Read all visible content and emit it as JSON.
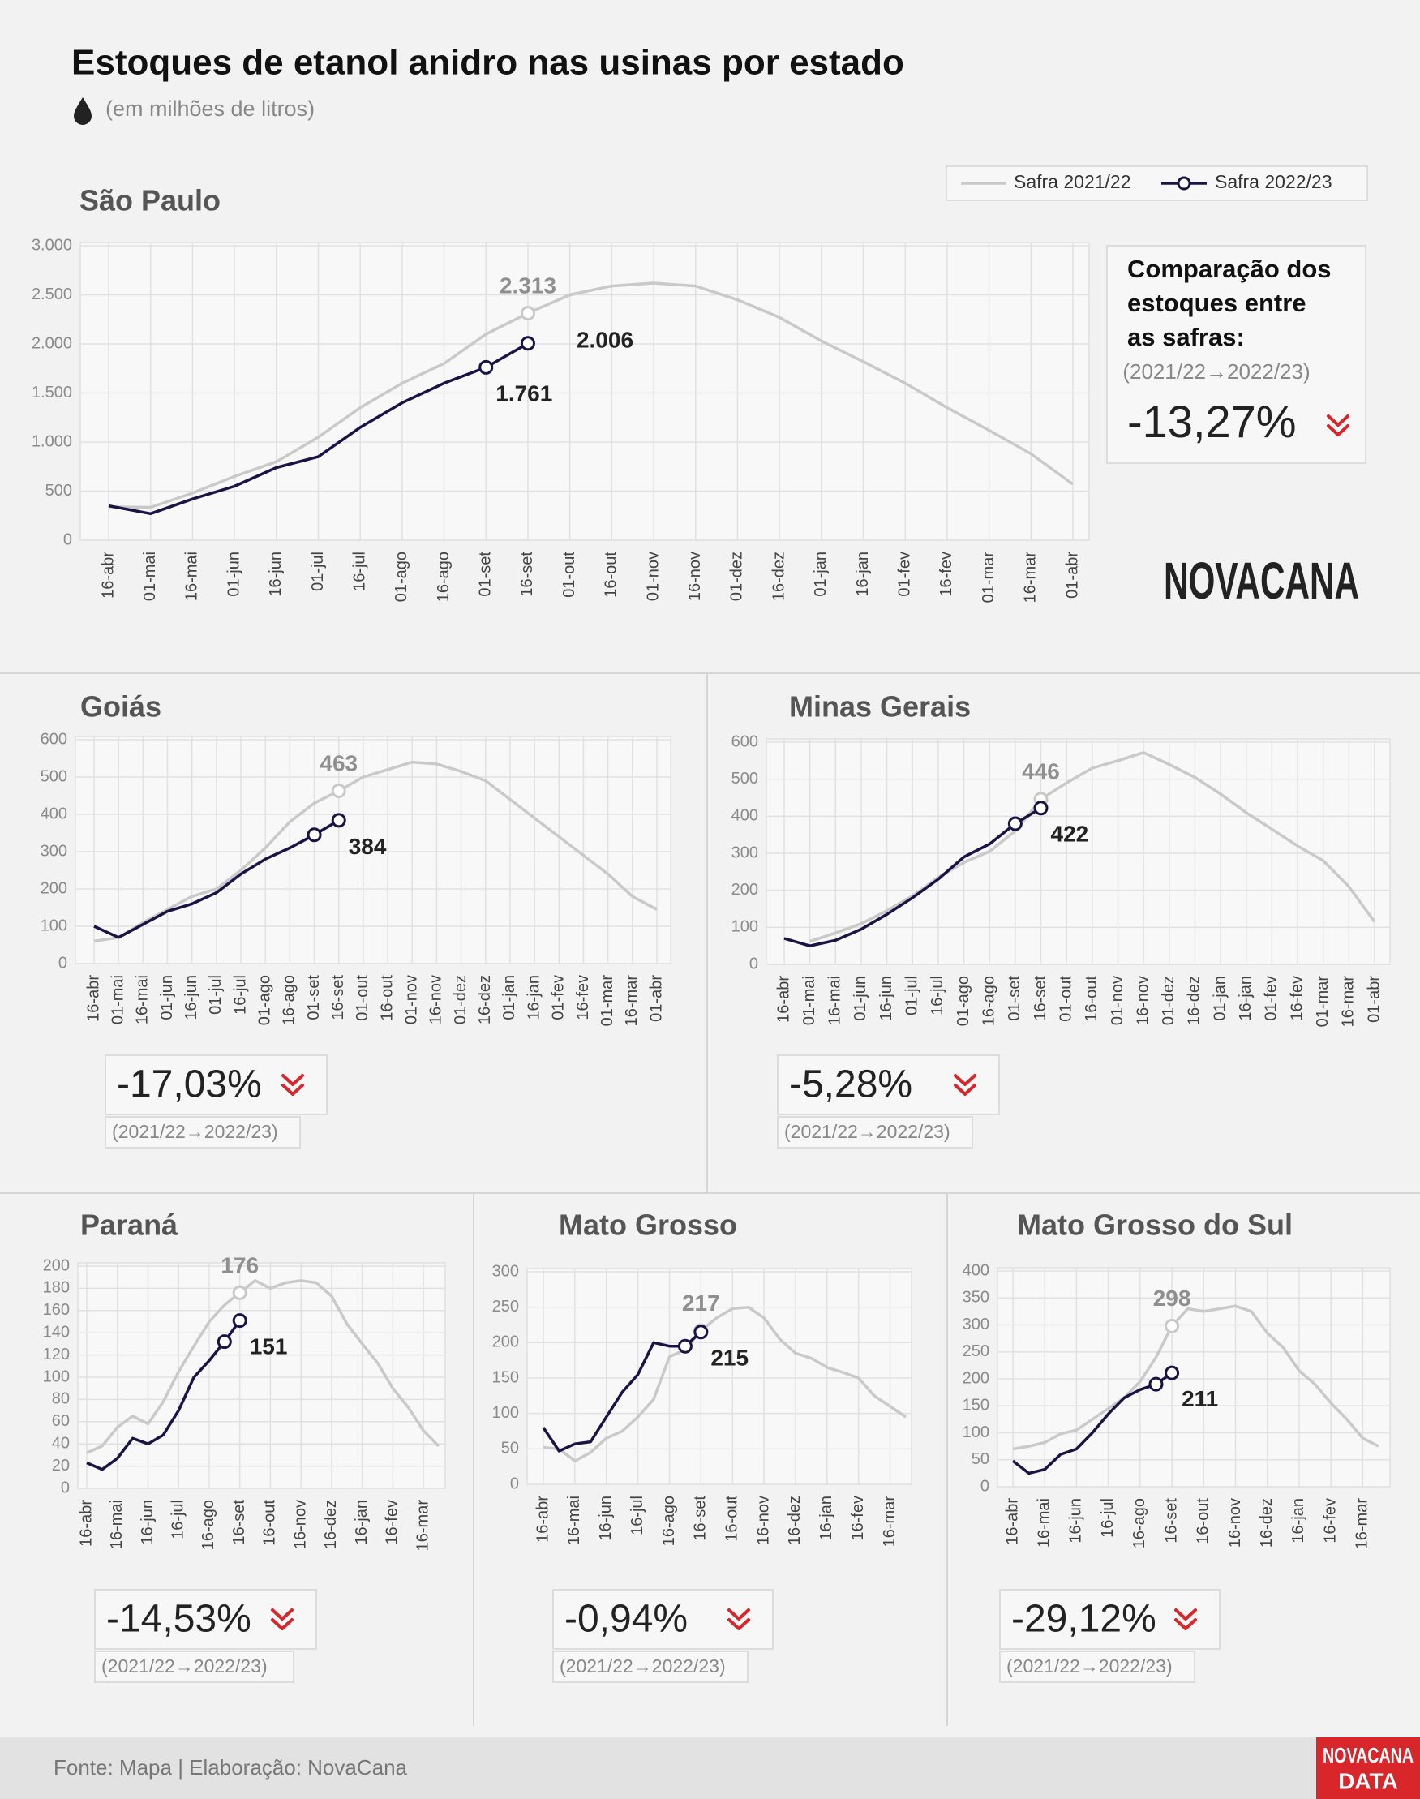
{
  "title": "Estoques de etanol anidro nas usinas por estado",
  "subtitle": "(em milhões de litros)",
  "logo": "NOVACANA",
  "source": "Fonte: Mapa | Elaboração: NovaCana",
  "footer_logo": [
    "NOVACANA",
    "DATA"
  ],
  "chart_data": [
    {
      "type": "line",
      "title": "São Paulo",
      "categories": [
        "16-abr",
        "01-mai",
        "16-mai",
        "01-jun",
        "16-jun",
        "01-jul",
        "16-jul",
        "01-ago",
        "16-ago",
        "01-set",
        "16-set",
        "01-out",
        "16-out",
        "01-nov",
        "16-nov",
        "01-dez",
        "16-dez",
        "01-jan",
        "16-jan",
        "01-fev",
        "16-fev",
        "01-mar",
        "16-mar",
        "01-abr"
      ],
      "series": [
        {
          "name": "Safra 2021/22",
          "color": "#c9c9c9",
          "values": [
            340,
            335,
            480,
            650,
            800,
            1050,
            1350,
            1600,
            1800,
            2100,
            2313,
            2500,
            2590,
            2620,
            2590,
            2450,
            2270,
            2030,
            1820,
            1600,
            1350,
            1120,
            880,
            570
          ],
          "value_labels": [
            null,
            null,
            null,
            null,
            null,
            null,
            null,
            null,
            null,
            null,
            "2.313",
            null,
            null,
            null,
            null,
            null,
            null,
            null,
            null,
            null,
            null,
            null,
            null,
            null
          ]
        },
        {
          "name": "Safra 2022/23",
          "color": "#1a1446",
          "values": [
            350,
            270,
            420,
            550,
            740,
            850,
            1150,
            1400,
            1600,
            1761,
            2006,
            null,
            null,
            null,
            null,
            null,
            null,
            null,
            null,
            null,
            null,
            null,
            null,
            null
          ],
          "value_labels": [
            null,
            null,
            null,
            null,
            null,
            null,
            null,
            null,
            null,
            "1.761",
            "2.006",
            null,
            null,
            null,
            null,
            null,
            null,
            null,
            null,
            null,
            null,
            null,
            null,
            null
          ]
        }
      ],
      "ylim": [
        0,
        3000
      ],
      "yticks": [
        0,
        500,
        {
          "value": 1000,
          "label": "1.000"
        },
        {
          "value": 1500,
          "label": "1.500"
        },
        {
          "value": 2000,
          "label": "2.000"
        },
        {
          "value": 2500,
          "label": "2.500"
        },
        {
          "value": 3000,
          "label": "3.000"
        }
      ],
      "grid": true,
      "comparison": {
        "label": [
          "Comparação dos",
          "estoques entre",
          "as safras:"
        ],
        "period": "(2021/22→2022/23)",
        "change": "-13,27%"
      }
    },
    {
      "type": "line",
      "title": "Goiás",
      "categories": [
        "16-abr",
        "01-mai",
        "16-mai",
        "01-jun",
        "16-jun",
        "01-jul",
        "16-jul",
        "01-ago",
        "16-ago",
        "01-set",
        "16-set",
        "01-out",
        "16-out",
        "01-nov",
        "16-nov",
        "01-dez",
        "16-dez",
        "01-jan",
        "16-jan",
        "01-fev",
        "16-fev",
        "01-mar",
        "16-mar",
        "01-abr"
      ],
      "series": [
        {
          "color": "#c9c9c9",
          "values": [
            60,
            70,
            110,
            145,
            180,
            200,
            250,
            310,
            380,
            430,
            463,
            500,
            520,
            540,
            535,
            515,
            490,
            440,
            390,
            340,
            290,
            240,
            180,
            145
          ],
          "value_labels": [
            null,
            null,
            null,
            null,
            null,
            null,
            null,
            null,
            null,
            null,
            "463",
            null,
            null,
            null,
            null,
            null,
            null,
            null,
            null,
            null,
            null,
            null,
            null,
            null
          ]
        },
        {
          "color": "#1a1446",
          "values": [
            100,
            70,
            105,
            140,
            160,
            190,
            240,
            280,
            310,
            345,
            384,
            null,
            null,
            null,
            null,
            null,
            null,
            null,
            null,
            null,
            null,
            null,
            null,
            null
          ],
          "value_labels": [
            null,
            null,
            null,
            null,
            null,
            null,
            null,
            null,
            null,
            null,
            "384",
            null,
            null,
            null,
            null,
            null,
            null,
            null,
            null,
            null,
            null,
            null,
            null,
            null
          ]
        }
      ],
      "ylim": [
        0,
        600
      ],
      "yticks": [
        0,
        100,
        200,
        300,
        400,
        500,
        600
      ],
      "grid": true,
      "comparison": {
        "period": "(2021/22→2022/23)",
        "change": "-17,03%"
      }
    },
    {
      "type": "line",
      "title": "Minas Gerais",
      "categories": [
        "16-abr",
        "01-mai",
        "16-mai",
        "01-jun",
        "16-jun",
        "01-jul",
        "16-jul",
        "01-ago",
        "16-ago",
        "01-set",
        "16-set",
        "01-out",
        "16-out",
        "01-nov",
        "16-nov",
        "01-dez",
        "16-dez",
        "01-jan",
        "16-jan",
        "01-fev",
        "16-fev",
        "01-mar",
        "16-mar",
        "01-abr"
      ],
      "series": [
        {
          "color": "#c9c9c9",
          "values": [
            null,
            62,
            85,
            110,
            145,
            185,
            235,
            275,
            305,
            360,
            446,
            490,
            530,
            550,
            572,
            540,
            505,
            460,
            410,
            365,
            320,
            280,
            210,
            115
          ],
          "value_labels": [
            null,
            null,
            null,
            null,
            null,
            null,
            null,
            null,
            null,
            null,
            "446",
            null,
            null,
            null,
            null,
            null,
            null,
            null,
            null,
            null,
            null,
            null,
            null,
            null
          ]
        },
        {
          "color": "#1a1446",
          "values": [
            70,
            50,
            65,
            95,
            135,
            180,
            230,
            290,
            325,
            380,
            422,
            null,
            null,
            null,
            null,
            null,
            null,
            null,
            null,
            null,
            null,
            null,
            null,
            null
          ],
          "value_labels": [
            null,
            null,
            null,
            null,
            null,
            null,
            null,
            null,
            null,
            null,
            "422",
            null,
            null,
            null,
            null,
            null,
            null,
            null,
            null,
            null,
            null,
            null,
            null,
            null
          ]
        }
      ],
      "ylim": [
        0,
        600
      ],
      "yticks": [
        0,
        100,
        200,
        300,
        400,
        500,
        600
      ],
      "grid": true,
      "comparison": {
        "period": "(2021/22→2022/23)",
        "change": "-5,28%"
      }
    },
    {
      "type": "line",
      "title": "Paraná",
      "categories": [
        "16-abr",
        null,
        "16-mai",
        null,
        "16-jun",
        null,
        "16-jul",
        null,
        "16-ago",
        null,
        "16-set",
        null,
        "16-out",
        null,
        "16-nov",
        null,
        "16-dez",
        null,
        "16-jan",
        null,
        "16-fev",
        null,
        "16-mar",
        null
      ],
      "series": [
        {
          "color": "#c9c9c9",
          "values": [
            32,
            38,
            55,
            65,
            58,
            78,
            105,
            128,
            150,
            165,
            176,
            187,
            180,
            185,
            187,
            185,
            173,
            148,
            130,
            113,
            90,
            73,
            52,
            38
          ],
          "value_labels": [
            null,
            null,
            null,
            null,
            null,
            null,
            null,
            null,
            null,
            null,
            "176",
            null,
            null,
            null,
            null,
            null,
            null,
            null,
            null,
            null,
            null,
            null,
            null,
            null
          ]
        },
        {
          "color": "#1a1446",
          "values": [
            23,
            17,
            27,
            45,
            40,
            48,
            70,
            100,
            115,
            132,
            151,
            null,
            null,
            null,
            null,
            null,
            null,
            null,
            null,
            null,
            null,
            null,
            null,
            null
          ],
          "value_labels": [
            null,
            null,
            null,
            null,
            null,
            null,
            null,
            null,
            null,
            null,
            "151",
            null,
            null,
            null,
            null,
            null,
            null,
            null,
            null,
            null,
            null,
            null,
            null,
            null
          ]
        }
      ],
      "ylim": [
        0,
        200
      ],
      "yticks": [
        0,
        20,
        40,
        60,
        80,
        100,
        120,
        140,
        160,
        180,
        200
      ],
      "grid": true,
      "comparison": {
        "period": "(2021/22→2022/23)",
        "change": "-14,53%"
      }
    },
    {
      "type": "line",
      "title": "Mato Grosso",
      "categories": [
        "16-abr",
        null,
        "16-mai",
        null,
        "16-jun",
        null,
        "16-jul",
        null,
        "16-ago",
        null,
        "16-set",
        null,
        "16-out",
        null,
        "16-nov",
        null,
        "16-dez",
        null,
        "16-jan",
        null,
        "16-fev",
        null,
        "16-mar",
        null
      ],
      "series": [
        {
          "color": "#c9c9c9",
          "values": [
            52,
            50,
            33,
            45,
            65,
            75,
            95,
            120,
            180,
            190,
            217,
            235,
            248,
            250,
            235,
            205,
            185,
            178,
            165,
            158,
            150,
            125,
            110,
            95
          ],
          "value_labels": [
            null,
            null,
            null,
            null,
            null,
            null,
            null,
            null,
            null,
            null,
            "217",
            null,
            null,
            null,
            null,
            null,
            null,
            null,
            null,
            null,
            null,
            null,
            null,
            null
          ]
        },
        {
          "color": "#1a1446",
          "values": [
            80,
            47,
            57,
            60,
            95,
            130,
            155,
            200,
            195,
            195,
            215,
            null,
            null,
            null,
            null,
            null,
            null,
            null,
            null,
            null,
            null,
            null,
            null,
            null
          ],
          "value_labels": [
            null,
            null,
            null,
            null,
            null,
            null,
            null,
            null,
            null,
            null,
            "215",
            null,
            null,
            null,
            null,
            null,
            null,
            null,
            null,
            null,
            null,
            null,
            null,
            null
          ]
        }
      ],
      "ylim": [
        0,
        300
      ],
      "yticks": [
        0,
        50,
        100,
        150,
        200,
        250,
        300
      ],
      "grid": true,
      "comparison": {
        "period": "(2021/22→2022/23)",
        "change": "-0,94%"
      }
    },
    {
      "type": "line",
      "title": "Mato Grosso do Sul",
      "categories": [
        "16-abr",
        null,
        "16-mai",
        null,
        "16-jun",
        null,
        "16-jul",
        null,
        "16-ago",
        null,
        "16-set",
        null,
        "16-out",
        null,
        "16-nov",
        null,
        "16-dez",
        null,
        "16-jan",
        null,
        "16-fev",
        null,
        "16-mar",
        null
      ],
      "series": [
        {
          "color": "#c9c9c9",
          "values": [
            70,
            75,
            82,
            98,
            105,
            125,
            145,
            165,
            195,
            240,
            298,
            330,
            325,
            330,
            335,
            325,
            285,
            258,
            215,
            190,
            155,
            125,
            90,
            75
          ],
          "value_labels": [
            null,
            null,
            null,
            null,
            null,
            null,
            null,
            null,
            null,
            null,
            "298",
            null,
            null,
            null,
            null,
            null,
            null,
            null,
            null,
            null,
            null,
            null,
            null,
            null
          ]
        },
        {
          "color": "#1a1446",
          "values": [
            48,
            25,
            32,
            60,
            70,
            100,
            135,
            165,
            180,
            190,
            211,
            null,
            null,
            null,
            null,
            null,
            null,
            null,
            null,
            null,
            null,
            null,
            null,
            null
          ],
          "value_labels": [
            null,
            null,
            null,
            null,
            null,
            null,
            null,
            null,
            null,
            null,
            "211",
            null,
            null,
            null,
            null,
            null,
            null,
            null,
            null,
            null,
            null,
            null,
            null,
            null
          ]
        }
      ],
      "ylim": [
        0,
        400
      ],
      "yticks": [
        0,
        50,
        100,
        150,
        200,
        250,
        300,
        350,
        400
      ],
      "grid": true,
      "comparison": {
        "period": "(2021/22→2022/23)",
        "change": "-29,12%"
      }
    }
  ]
}
